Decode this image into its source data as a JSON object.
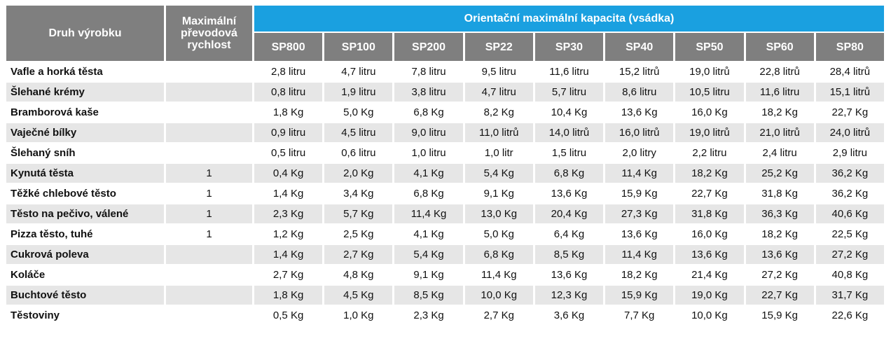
{
  "table": {
    "header": {
      "product": "Druh výrobku",
      "speed": "Maximální převodová rychlost",
      "capacity": "Orientační maximální kapacita (vsádka)",
      "models": [
        "SP800",
        "SP100",
        "SP200",
        "SP22",
        "SP30",
        "SP40",
        "SP50",
        "SP60",
        "SP80"
      ]
    },
    "rows": [
      {
        "name": "Vafle a horká těsta",
        "speed": null,
        "values": [
          "2,8 litru",
          "4,7 litru",
          "7,8 litru",
          "9,5 litru",
          "11,6 litru",
          "15,2 litrů",
          "19,0 litrů",
          "22,8 litrů",
          "28,4 litrů"
        ]
      },
      {
        "name": "Šlehané krémy",
        "speed": null,
        "values": [
          "0,8 litru",
          "1,9 litru",
          "3,8 litru",
          "4,7 litru",
          "5,7 litru",
          "8,6 litru",
          "10,5 litru",
          "11,6 litru",
          "15,1 litrů"
        ]
      },
      {
        "name": "Bramborová kaše",
        "speed": null,
        "values": [
          "1,8 Kg",
          "5,0 Kg",
          "6,8 Kg",
          "8,2 Kg",
          "10,4 Kg",
          "13,6 Kg",
          "16,0 Kg",
          "18,2 Kg",
          "22,7 Kg"
        ]
      },
      {
        "name": "Vaječné bílky",
        "speed": null,
        "values": [
          "0,9 litru",
          "4,5 litru",
          "9,0 litru",
          "11,0 litrů",
          "14,0 litrů",
          "16,0 litrů",
          "19,0 litrů",
          "21,0 litrů",
          "24,0 litrů"
        ]
      },
      {
        "name": "Šlehaný sníh",
        "speed": null,
        "values": [
          "0,5 litru",
          "0,6 litru",
          "1,0 litru",
          "1,0 litr",
          "1,5 litru",
          "2,0 litry",
          "2,2 litru",
          "2,4 litru",
          "2,9 litru"
        ]
      },
      {
        "name": "Kynutá těsta",
        "speed": "1",
        "values": [
          "0,4 Kg",
          "2,0 Kg",
          "4,1 Kg",
          "5,4 Kg",
          "6,8 Kg",
          "11,4 Kg",
          "18,2 Kg",
          "25,2 Kg",
          "36,2 Kg"
        ]
      },
      {
        "name": "Těžké chlebové těsto",
        "speed": "1",
        "values": [
          "1,4 Kg",
          "3,4 Kg",
          "6,8 Kg",
          "9,1 Kg",
          "13,6 Kg",
          "15,9 Kg",
          "22,7 Kg",
          "31,8 Kg",
          "36,2 Kg"
        ]
      },
      {
        "name": "Těsto na pečivo, válené",
        "speed": "1",
        "values": [
          "2,3 Kg",
          "5,7 Kg",
          "11,4 Kg",
          "13,0 Kg",
          "20,4 Kg",
          "27,3 Kg",
          "31,8 Kg",
          "36,3 Kg",
          "40,6 Kg"
        ]
      },
      {
        "name": "Pizza těsto, tuhé",
        "speed": "1",
        "values": [
          "1,2 Kg",
          "2,5 Kg",
          "4,1 Kg",
          "5,0 Kg",
          "6,4 Kg",
          "13,6 Kg",
          "16,0 Kg",
          "18,2 Kg",
          "22,5 Kg"
        ]
      },
      {
        "name": "Cukrová poleva",
        "speed": null,
        "values": [
          "1,4 Kg",
          "2,7 Kg",
          "5,4 Kg",
          "6,8 Kg",
          "8,5 Kg",
          "11,4 Kg",
          "13,6 Kg",
          "13,6 Kg",
          "27,2 Kg"
        ]
      },
      {
        "name": "Koláče",
        "speed": null,
        "values": [
          "2,7 Kg",
          "4,8 Kg",
          "9,1 Kg",
          "11,4 Kg",
          "13,6 Kg",
          "18,2 Kg",
          "21,4 Kg",
          "27,2 Kg",
          "40,8 Kg"
        ]
      },
      {
        "name": "Buchtové těsto",
        "speed": null,
        "values": [
          "1,8 Kg",
          "4,5 Kg",
          "8,5 Kg",
          "10,0 Kg",
          "12,3 Kg",
          "15,9 Kg",
          "19,0 Kg",
          "22,7 Kg",
          "31,7 Kg"
        ]
      },
      {
        "name": "Těstoviny",
        "speed": null,
        "values": [
          "0,5 Kg",
          "1,0 Kg",
          "2,3 Kg",
          "2,7 Kg",
          "3,6 Kg",
          "7,7 Kg",
          "10,0 Kg",
          "15,9 Kg",
          "22,6 Kg"
        ]
      }
    ]
  }
}
